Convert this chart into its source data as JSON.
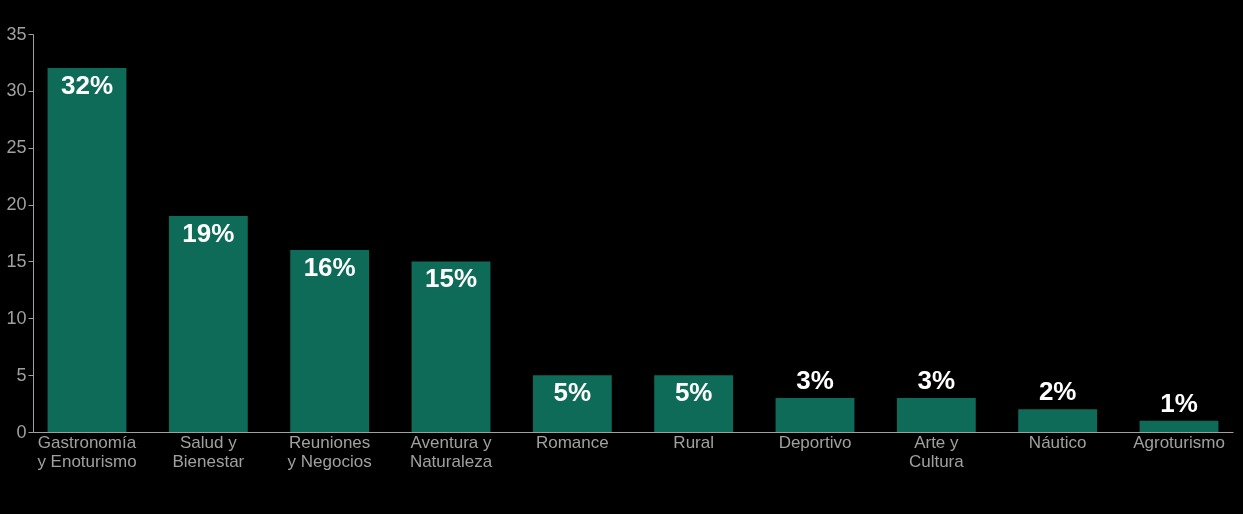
{
  "chart_data": {
    "type": "bar",
    "categories": [
      "Gastronomía\ny Enoturismo",
      "Salud y\nBienestar",
      "Reuniones\ny Negocios",
      "Aventura y\nNaturaleza",
      "Romance",
      "Rural",
      "Deportivo",
      "Arte y\nCultura",
      "Náutico",
      "Agroturismo"
    ],
    "values": [
      32,
      19,
      16,
      15,
      5,
      5,
      3,
      3,
      2,
      1
    ],
    "color": "#0e6b58",
    "value_labels": [
      "32%",
      "19%",
      "16%",
      "15%",
      "5%",
      "5%",
      "3%",
      "3%",
      "2%",
      "1%"
    ],
    "ylim": [
      0,
      35
    ],
    "yticks": [
      0,
      5,
      10,
      15,
      20,
      25,
      30,
      35
    ],
    "grid": false
  }
}
